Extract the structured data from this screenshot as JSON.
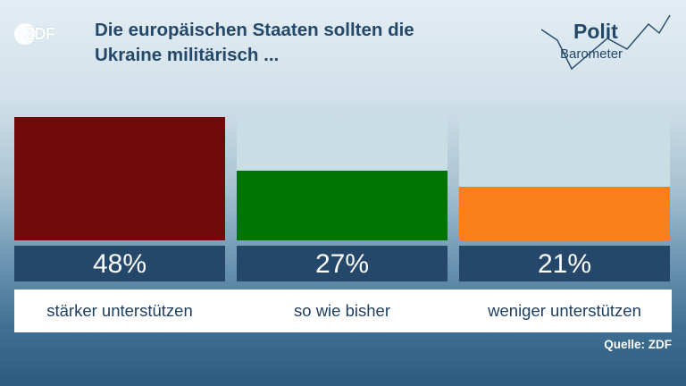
{
  "header": {
    "logo": "ZDF",
    "title_line1": "Die europäischen Staaten sollten die",
    "title_line2": "Ukraine militärisch ...",
    "brand_word": "Polit",
    "brand_sub": "Barometer"
  },
  "chart_data": {
    "type": "bar",
    "categories": [
      "stärker unterstützen",
      "so wie bisher",
      "weniger unterstützen"
    ],
    "values": [
      48,
      27,
      21
    ],
    "value_labels": [
      "48%",
      "27%",
      "21%"
    ],
    "colors": [
      "#700b0c",
      "#027403",
      "#fb7f1b"
    ],
    "ylim": [
      0,
      48
    ],
    "unit": "%"
  },
  "footer": {
    "source": "Quelle: ZDF"
  }
}
